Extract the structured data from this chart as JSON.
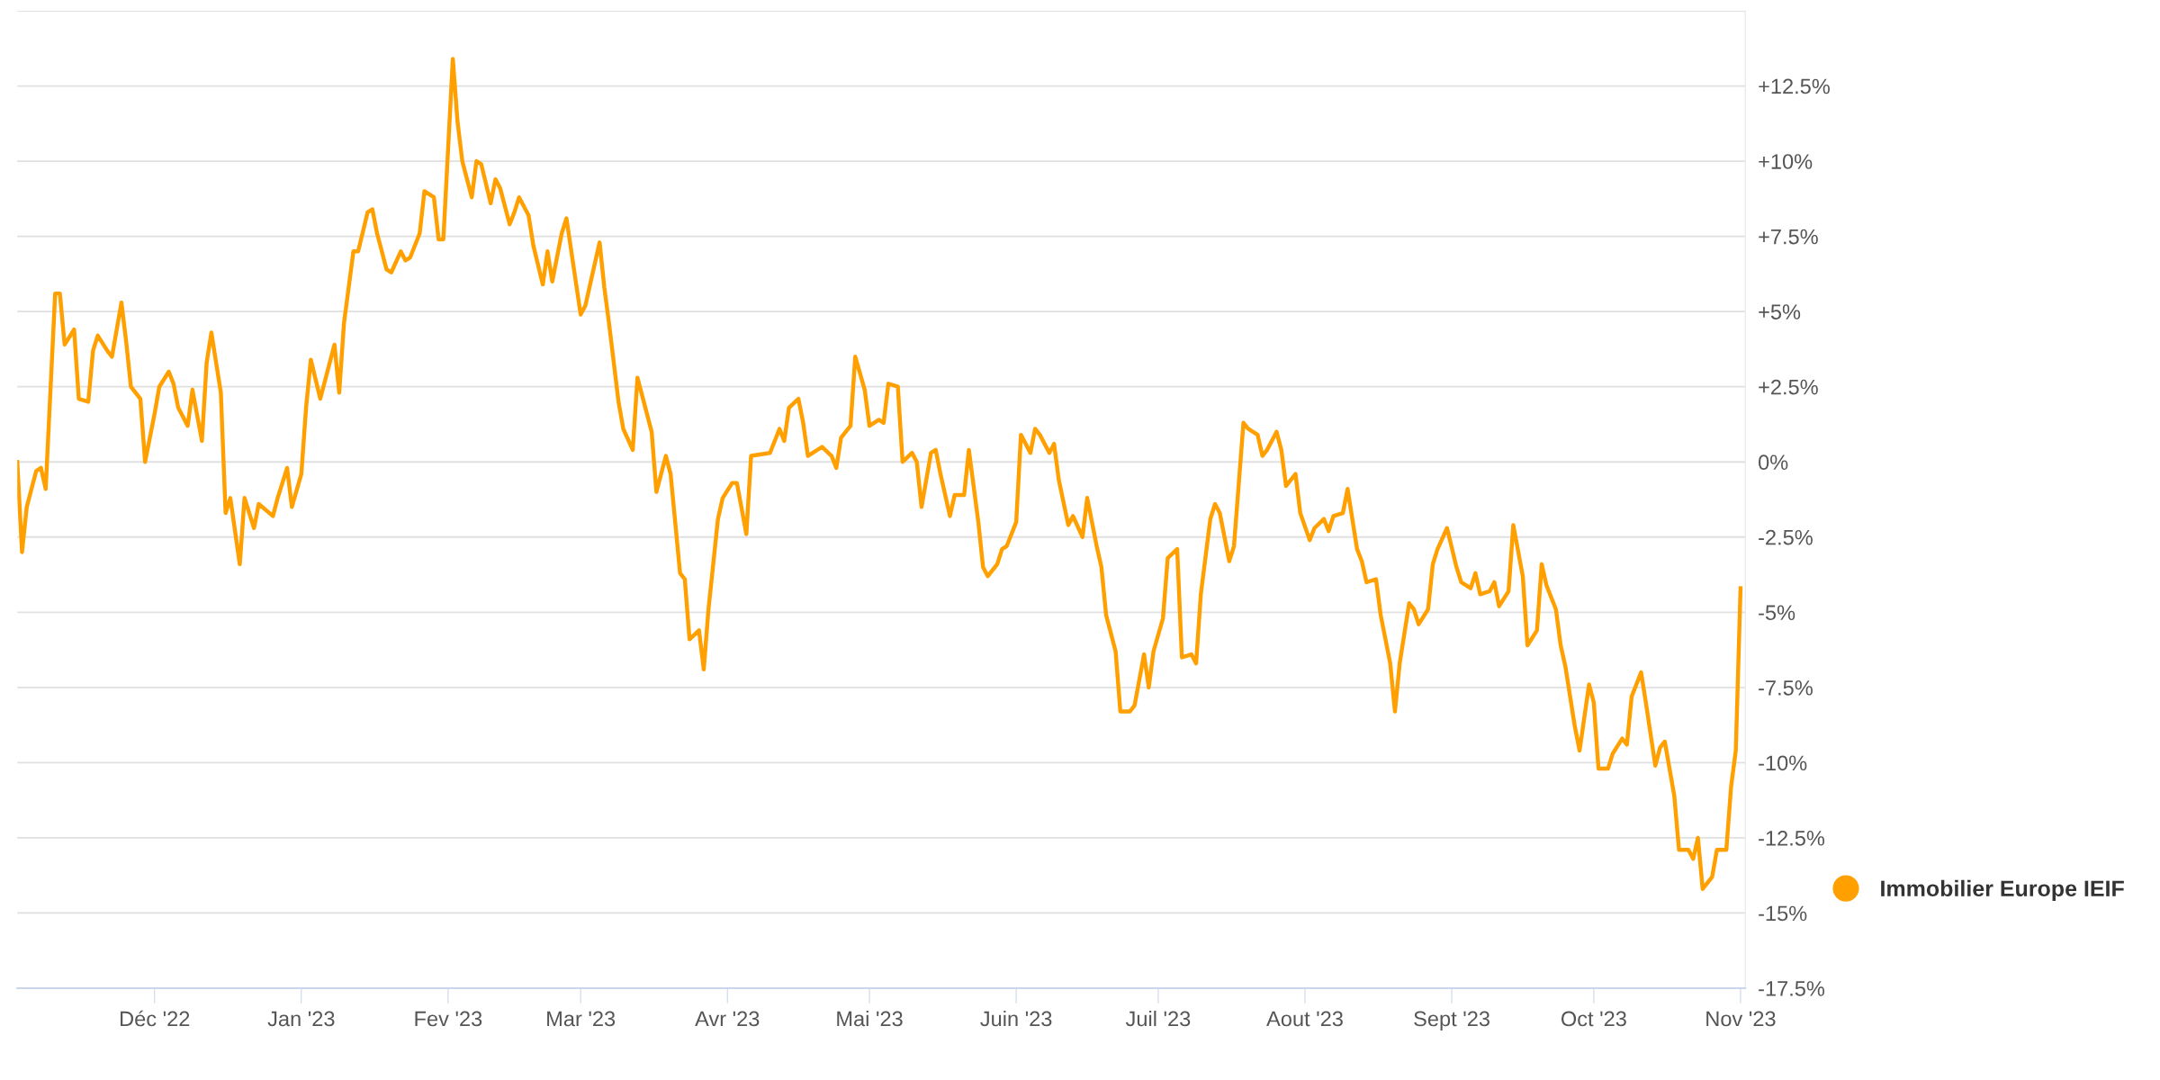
{
  "chart_data": {
    "type": "line",
    "x": [
      "2022-11-02",
      "2022-11-03",
      "2022-11-04",
      "2022-11-06",
      "2022-11-07",
      "2022-11-08",
      "2022-11-10",
      "2022-11-11",
      "2022-11-12",
      "2022-11-14",
      "2022-11-15",
      "2022-11-17",
      "2022-11-18",
      "2022-11-19",
      "2022-11-21",
      "2022-11-22",
      "2022-11-24",
      "2022-11-25",
      "2022-11-26",
      "2022-11-28",
      "2022-11-29",
      "2022-12-01",
      "2022-12-02",
      "2022-12-04",
      "2022-12-05",
      "2022-12-06",
      "2022-12-08",
      "2022-12-09",
      "2022-12-11",
      "2022-12-12",
      "2022-12-13",
      "2022-12-15",
      "2022-12-16",
      "2022-12-17",
      "2022-12-19",
      "2022-12-20",
      "2022-12-22",
      "2022-12-23",
      "2022-12-26",
      "2022-12-27",
      "2022-12-29",
      "2022-12-30",
      "2023-01-01",
      "2023-01-02",
      "2023-01-03",
      "2023-01-05",
      "2023-01-06",
      "2023-01-08",
      "2023-01-09",
      "2023-01-10",
      "2023-01-12",
      "2023-01-13",
      "2023-01-15",
      "2023-01-16",
      "2023-01-17",
      "2023-01-19",
      "2023-01-20",
      "2023-01-22",
      "2023-01-23",
      "2023-01-24",
      "2023-01-26",
      "2023-01-27",
      "2023-01-29",
      "2023-01-30",
      "2023-01-31",
      "2023-02-02",
      "2023-02-03",
      "2023-02-04",
      "2023-02-06",
      "2023-02-07",
      "2023-02-08",
      "2023-02-10",
      "2023-02-11",
      "2023-02-12",
      "2023-02-14",
      "2023-02-15",
      "2023-02-16",
      "2023-02-18",
      "2023-02-19",
      "2023-02-21",
      "2023-02-22",
      "2023-02-23",
      "2023-02-25",
      "2023-02-26",
      "2023-03-01",
      "2023-03-02",
      "2023-03-03",
      "2023-03-05",
      "2023-03-06",
      "2023-03-07",
      "2023-03-09",
      "2023-03-10",
      "2023-03-12",
      "2023-03-13",
      "2023-03-16",
      "2023-03-17",
      "2023-03-19",
      "2023-03-20",
      "2023-03-22",
      "2023-03-23",
      "2023-03-24",
      "2023-03-26",
      "2023-03-27",
      "2023-03-28",
      "2023-03-30",
      "2023-03-31",
      "2023-04-02",
      "2023-04-03",
      "2023-04-05",
      "2023-04-06",
      "2023-04-10",
      "2023-04-12",
      "2023-04-13",
      "2023-04-14",
      "2023-04-16",
      "2023-04-17",
      "2023-04-18",
      "2023-04-20",
      "2023-04-21",
      "2023-04-23",
      "2023-04-24",
      "2023-04-25",
      "2023-04-27",
      "2023-04-28",
      "2023-04-30",
      "2023-05-01",
      "2023-05-03",
      "2023-05-04",
      "2023-05-05",
      "2023-05-07",
      "2023-05-08",
      "2023-05-10",
      "2023-05-11",
      "2023-05-12",
      "2023-05-14",
      "2023-05-15",
      "2023-05-16",
      "2023-05-18",
      "2023-05-19",
      "2023-05-21",
      "2023-05-22",
      "2023-05-24",
      "2023-05-25",
      "2023-05-26",
      "2023-05-28",
      "2023-05-29",
      "2023-05-30",
      "2023-06-01",
      "2023-06-02",
      "2023-06-04",
      "2023-06-05",
      "2023-06-06",
      "2023-06-08",
      "2023-06-09",
      "2023-06-10",
      "2023-06-12",
      "2023-06-13",
      "2023-06-15",
      "2023-06-16",
      "2023-06-18",
      "2023-06-19",
      "2023-06-20",
      "2023-06-22",
      "2023-06-23",
      "2023-06-25",
      "2023-06-26",
      "2023-06-28",
      "2023-06-29",
      "2023-06-30",
      "2023-07-02",
      "2023-07-03",
      "2023-07-05",
      "2023-07-06",
      "2023-07-08",
      "2023-07-09",
      "2023-07-10",
      "2023-07-12",
      "2023-07-13",
      "2023-07-14",
      "2023-07-16",
      "2023-07-17",
      "2023-07-19",
      "2023-07-20",
      "2023-07-22",
      "2023-07-23",
      "2023-07-24",
      "2023-07-26",
      "2023-07-27",
      "2023-07-28",
      "2023-07-30",
      "2023-07-31",
      "2023-08-02",
      "2023-08-03",
      "2023-08-05",
      "2023-08-06",
      "2023-08-07",
      "2023-08-09",
      "2023-08-10",
      "2023-08-12",
      "2023-08-13",
      "2023-08-14",
      "2023-08-16",
      "2023-08-17",
      "2023-08-19",
      "2023-08-20",
      "2023-08-21",
      "2023-08-23",
      "2023-08-24",
      "2023-08-25",
      "2023-08-27",
      "2023-08-28",
      "2023-08-29",
      "2023-08-31",
      "2023-09-02",
      "2023-09-03",
      "2023-09-05",
      "2023-09-06",
      "2023-09-07",
      "2023-09-09",
      "2023-09-10",
      "2023-09-11",
      "2023-09-13",
      "2023-09-14",
      "2023-09-16",
      "2023-09-17",
      "2023-09-19",
      "2023-09-20",
      "2023-09-21",
      "2023-09-23",
      "2023-09-24",
      "2023-09-25",
      "2023-09-27",
      "2023-09-28",
      "2023-09-30",
      "2023-10-01",
      "2023-10-02",
      "2023-10-04",
      "2023-10-05",
      "2023-10-07",
      "2023-10-08",
      "2023-10-09",
      "2023-10-11",
      "2023-10-12",
      "2023-10-14",
      "2023-10-15",
      "2023-10-16",
      "2023-10-18",
      "2023-10-19",
      "2023-10-21",
      "2023-10-22",
      "2023-10-23",
      "2023-10-24",
      "2023-10-26",
      "2023-10-27",
      "2023-10-29",
      "2023-10-30",
      "2023-10-31",
      "2023-11-01"
    ],
    "series": [
      {
        "name": "Immobilier Europe IEIF",
        "color": "#ffa000",
        "values": [
          0.0,
          -3.0,
          -1.5,
          -0.3,
          -0.2,
          -0.9,
          5.6,
          5.6,
          3.9,
          4.4,
          2.1,
          2.0,
          3.7,
          4.2,
          3.7,
          3.5,
          5.3,
          4.0,
          2.5,
          2.1,
          0.0,
          1.6,
          2.5,
          3.0,
          2.6,
          1.8,
          1.2,
          2.4,
          0.7,
          3.3,
          4.3,
          2.3,
          -1.7,
          -1.2,
          -3.4,
          -1.2,
          -2.2,
          -1.4,
          -1.8,
          -1.2,
          -0.2,
          -1.5,
          -0.4,
          1.8,
          3.4,
          2.1,
          2.7,
          3.9,
          2.3,
          4.6,
          7.0,
          7.0,
          8.3,
          8.4,
          7.6,
          6.4,
          6.3,
          7.0,
          6.7,
          6.8,
          7.6,
          9.0,
          8.8,
          7.4,
          7.4,
          13.4,
          11.3,
          10.0,
          8.8,
          10.0,
          9.9,
          8.6,
          9.4,
          9.1,
          7.9,
          8.3,
          8.8,
          8.2,
          7.2,
          5.9,
          7.0,
          6.0,
          7.6,
          8.1,
          4.9,
          5.2,
          5.9,
          7.3,
          5.8,
          4.6,
          2.0,
          1.1,
          0.4,
          2.8,
          1.0,
          -1.0,
          0.2,
          -0.4,
          -3.7,
          -3.9,
          -5.9,
          -5.6,
          -6.9,
          -4.9,
          -1.9,
          -1.2,
          -0.7,
          -0.7,
          -2.4,
          0.2,
          0.3,
          1.1,
          0.7,
          1.8,
          2.1,
          1.3,
          0.2,
          0.4,
          0.5,
          0.2,
          -0.2,
          0.8,
          1.2,
          3.5,
          2.4,
          1.2,
          1.4,
          1.3,
          2.6,
          2.5,
          0.0,
          0.3,
          0.0,
          -1.5,
          0.3,
          0.4,
          -0.4,
          -1.8,
          -1.1,
          -1.1,
          0.4,
          -2.0,
          -3.5,
          -3.8,
          -3.4,
          -2.9,
          -2.8,
          -2.0,
          0.9,
          0.3,
          1.1,
          0.9,
          0.3,
          0.6,
          -0.6,
          -2.1,
          -1.8,
          -2.5,
          -1.2,
          -2.8,
          -3.5,
          -5.1,
          -6.3,
          -8.3,
          -8.3,
          -8.1,
          -6.4,
          -7.5,
          -6.3,
          -5.2,
          -3.2,
          -2.9,
          -6.5,
          -6.4,
          -6.7,
          -4.4,
          -1.9,
          -1.4,
          -1.7,
          -3.3,
          -2.8,
          1.3,
          1.1,
          0.9,
          0.2,
          0.4,
          1.0,
          0.4,
          -0.8,
          -0.4,
          -1.7,
          -2.6,
          -2.2,
          -1.9,
          -2.3,
          -1.8,
          -1.7,
          -0.9,
          -2.9,
          -3.3,
          -4.0,
          -3.9,
          -5.1,
          -6.7,
          -8.3,
          -6.7,
          -4.7,
          -4.9,
          -5.4,
          -4.9,
          -3.4,
          -2.9,
          -2.2,
          -3.5,
          -4.0,
          -4.2,
          -3.7,
          -4.4,
          -4.3,
          -4.0,
          -4.8,
          -4.3,
          -2.1,
          -3.8,
          -6.1,
          -5.6,
          -3.4,
          -4.1,
          -4.9,
          -6.1,
          -6.8,
          -8.8,
          -9.6,
          -7.4,
          -8.0,
          -10.2,
          -10.2,
          -9.7,
          -9.2,
          -9.4,
          -7.8,
          -7.0,
          -8.0,
          -10.1,
          -9.5,
          -9.3,
          -11.1,
          -12.9,
          -12.9,
          -13.2,
          -12.5,
          -14.2,
          -13.8,
          -12.9,
          -12.9,
          -10.8,
          -9.6,
          -4.2
        ]
      }
    ],
    "xlim": [
      "2022-11-02",
      "2023-11-02"
    ],
    "xticks": [
      {
        "value": "2022-12-01",
        "label": "Déc '22"
      },
      {
        "value": "2023-01-01",
        "label": "Jan '23"
      },
      {
        "value": "2023-02-01",
        "label": "Fev '23"
      },
      {
        "value": "2023-03-01",
        "label": "Mar '23"
      },
      {
        "value": "2023-04-01",
        "label": "Avr '23"
      },
      {
        "value": "2023-05-01",
        "label": "Mai '23"
      },
      {
        "value": "2023-06-01",
        "label": "Juin '23"
      },
      {
        "value": "2023-07-01",
        "label": "Juil '23"
      },
      {
        "value": "2023-08-01",
        "label": "Aout '23"
      },
      {
        "value": "2023-09-01",
        "label": "Sept '23"
      },
      {
        "value": "2023-10-01",
        "label": "Oct '23"
      },
      {
        "value": "2023-11-01",
        "label": "Nov '23"
      }
    ],
    "ylim": [
      -17.5,
      15
    ],
    "yticks": [
      {
        "value": -17.5,
        "label": "-17.5%"
      },
      {
        "value": -15,
        "label": "-15%"
      },
      {
        "value": -12.5,
        "label": "-12.5%"
      },
      {
        "value": -10,
        "label": "-10%"
      },
      {
        "value": -7.5,
        "label": "-7.5%"
      },
      {
        "value": -5,
        "label": "-5%"
      },
      {
        "value": -2.5,
        "label": "-2.5%"
      },
      {
        "value": 0,
        "label": "0%"
      },
      {
        "value": 2.5,
        "label": "+2.5%"
      },
      {
        "value": 5,
        "label": "+5%"
      },
      {
        "value": 7.5,
        "label": "+7.5%"
      },
      {
        "value": 10,
        "label": "+10%"
      },
      {
        "value": 12.5,
        "label": "+12.5%"
      },
      {
        "value": 15,
        "label": null
      }
    ],
    "grid": "y",
    "legend": "right",
    "marker": "none",
    "line_style": "solid"
  }
}
